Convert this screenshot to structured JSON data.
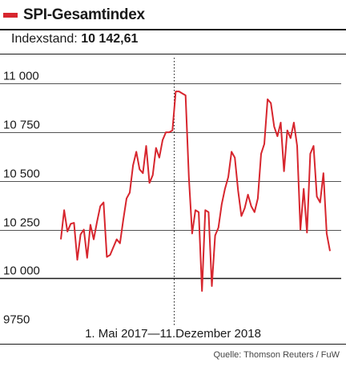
{
  "header": {
    "title": "SPI-Gesamtindex",
    "subtitle_label": "Indexstand:",
    "subtitle_value": "10 142,61"
  },
  "footer": {
    "period": "1. Mai 2017—11.Dezember 2018",
    "source": "Quelle: Thomson Reuters / FuW"
  },
  "colors": {
    "line": "#d7262e",
    "title_marker": "#d7262e",
    "grid": "#1a1a1a"
  },
  "chart_data": {
    "type": "line",
    "title": "SPI-Gesamtindex",
    "xlabel": "1. Mai 2017—11.Dezember 2018",
    "ylabel": "",
    "ylim": [
      9750,
      11150
    ],
    "yticks": [
      11000,
      10750,
      10500,
      10250,
      10000,
      9750
    ],
    "ytick_labels": [
      "11 000",
      "10 750",
      "10 500",
      "10 250",
      "10 000",
      "9750"
    ],
    "marker_line": "1. Januar 2018",
    "grid": "horizontal",
    "series": [
      {
        "values": [
          10200,
          10350,
          10240,
          10280,
          10285,
          10095,
          10225,
          10250,
          10105,
          10275,
          10200,
          10290,
          10370,
          10390,
          10110,
          10120,
          10160,
          10200,
          10180,
          10300,
          10410,
          10440,
          10580,
          10650,
          10560,
          10540,
          10680,
          10490,
          10530,
          10670,
          10620,
          10710,
          10750,
          10750,
          10760,
          10960,
          10960,
          10950,
          10940,
          10520,
          10230,
          10350,
          10340,
          9935,
          10350,
          10340,
          9960,
          10220,
          10260,
          10380,
          10460,
          10520,
          10650,
          10620,
          10450,
          10320,
          10360,
          10430,
          10370,
          10340,
          10410,
          10640,
          10690,
          10920,
          10900,
          10780,
          10730,
          10800,
          10550,
          10760,
          10720,
          10800,
          10680,
          10250,
          10460,
          10235,
          10640,
          10680,
          10420,
          10390,
          10540,
          10230,
          10140
        ]
      }
    ]
  }
}
